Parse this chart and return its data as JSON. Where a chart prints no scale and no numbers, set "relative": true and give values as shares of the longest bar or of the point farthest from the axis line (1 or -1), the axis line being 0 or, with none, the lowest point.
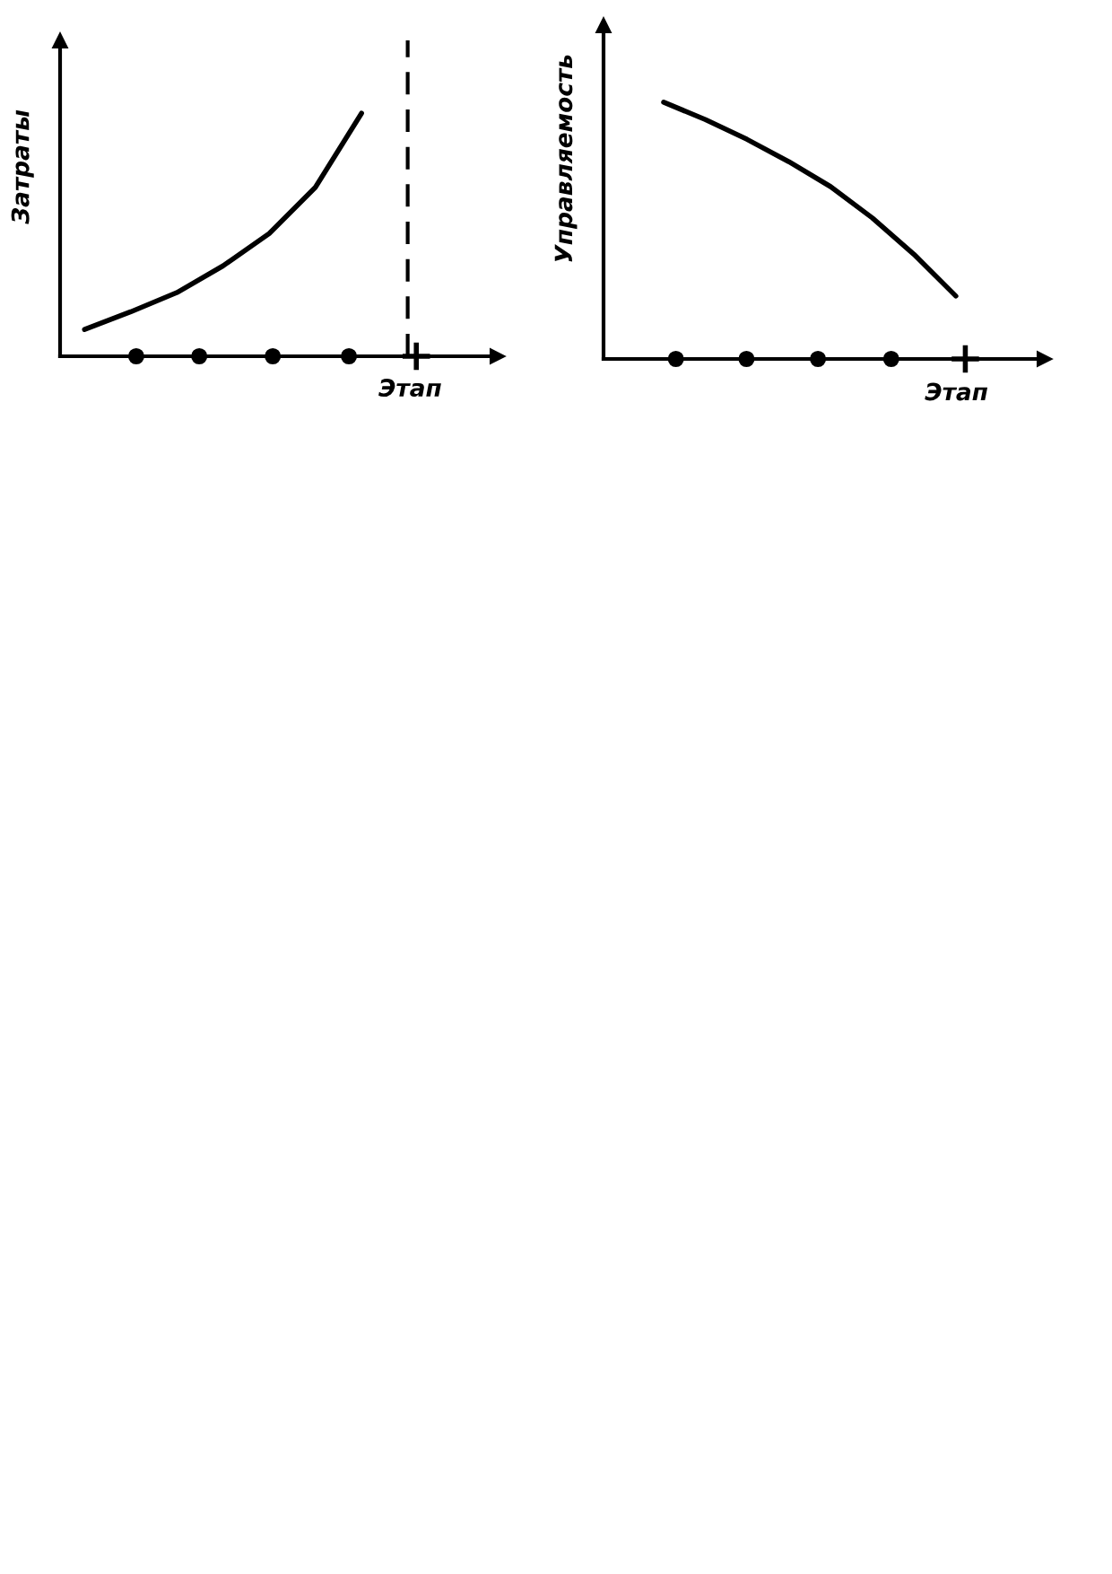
{
  "chart_data": [
    {
      "type": "line",
      "ylabel": "Затраты",
      "xlabel": "Этап",
      "relative": true,
      "categories": [
        null,
        null,
        null,
        null,
        null,
        null,
        null,
        null
      ],
      "ref_lines": [
        {
          "axis": "x",
          "label": null,
          "color": "#000000",
          "line_style": "dashed"
        }
      ],
      "series": [
        {
          "color": "#000000",
          "values": [
            0.11,
            0.183,
            0.262,
            0.372,
            0.505,
            0.695,
            1,
            null
          ]
        }
      ]
    },
    {
      "type": "line",
      "ylabel": "Управляемость",
      "xlabel": "Этап",
      "relative": true,
      "categories": [
        null,
        null,
        null,
        null,
        null,
        null,
        null,
        null
      ],
      "series": [
        {
          "color": "#000000",
          "values": [
            1,
            0.932,
            0.855,
            0.768,
            0.671,
            0.549,
            0.407,
            0.245
          ]
        }
      ]
    }
  ]
}
